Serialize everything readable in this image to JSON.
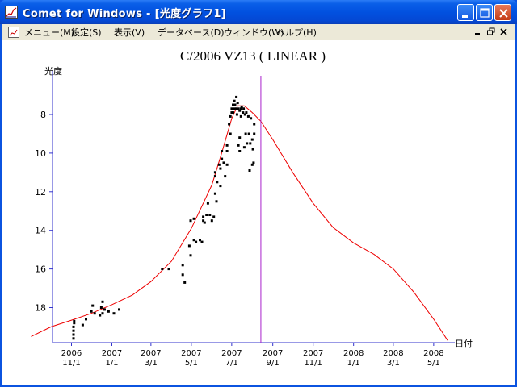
{
  "window": {
    "title": "Comet for Windows - [光度グラフ1]"
  },
  "menu": {
    "items": [
      "メニュー(M)",
      "設定(S)",
      "表示(V)",
      "データベース(D)",
      "ウィンドウ(W)",
      "ヘルプ(H)"
    ]
  },
  "colors": {
    "title_bar": "#0251e0",
    "curve": "#ee0000",
    "marker_line": "#aa22cc",
    "axis": "#3333cc",
    "points": "#000000"
  },
  "chart_data": {
    "type": "scatter",
    "title": "C/2006 VZ13 ( LINEAR )",
    "ylabel": "光度",
    "xlabel": "日付",
    "y_inverted": true,
    "ylim": [
      6.5,
      19.8
    ],
    "y_ticks": [
      8,
      10,
      12,
      14,
      16,
      18
    ],
    "x_ticks": [
      {
        "year": "2006",
        "date": "11/1"
      },
      {
        "year": "2007",
        "date": "1/1"
      },
      {
        "year": "2007",
        "date": "3/1"
      },
      {
        "year": "2007",
        "date": "5/1"
      },
      {
        "year": "2007",
        "date": "7/1"
      },
      {
        "year": "2007",
        "date": "9/1"
      },
      {
        "year": "2007",
        "date": "11/1"
      },
      {
        "year": "2008",
        "date": "1/1"
      },
      {
        "year": "2008",
        "date": "3/1"
      },
      {
        "year": "2008",
        "date": "5/1"
      }
    ],
    "marker_date": "2007-08-14",
    "observations": [
      [
        "2006-11-04",
        19.6
      ],
      [
        "2006-11-04",
        19.4
      ],
      [
        "2006-11-04",
        19.2
      ],
      [
        "2006-11-04",
        19.0
      ],
      [
        "2006-11-05",
        18.8
      ],
      [
        "2006-11-05",
        18.7
      ],
      [
        "2006-11-18",
        18.9
      ],
      [
        "2006-11-23",
        18.6
      ],
      [
        "2006-12-01",
        18.2
      ],
      [
        "2006-12-03",
        17.9
      ],
      [
        "2006-12-06",
        18.3
      ],
      [
        "2006-12-14",
        18.4
      ],
      [
        "2006-12-16",
        18.0
      ],
      [
        "2006-12-18",
        17.7
      ],
      [
        "2006-12-18",
        18.3
      ],
      [
        "2006-12-21",
        18.1
      ],
      [
        "2006-12-27",
        18.2
      ],
      [
        "2007-01-04",
        18.3
      ],
      [
        "2007-01-12",
        18.1
      ],
      [
        "2007-03-18",
        16.0
      ],
      [
        "2007-03-28",
        16.0
      ],
      [
        "2007-04-18",
        15.8
      ],
      [
        "2007-04-18",
        16.3
      ],
      [
        "2007-04-21",
        16.7
      ],
      [
        "2007-04-28",
        14.8
      ],
      [
        "2007-04-30",
        15.3
      ],
      [
        "2007-04-30",
        13.5
      ],
      [
        "2007-05-05",
        13.4
      ],
      [
        "2007-05-05",
        14.5
      ],
      [
        "2007-05-08",
        14.6
      ],
      [
        "2007-05-14",
        14.5
      ],
      [
        "2007-05-17",
        14.6
      ],
      [
        "2007-05-19",
        13.3
      ],
      [
        "2007-05-19",
        13.5
      ],
      [
        "2007-05-21",
        13.6
      ],
      [
        "2007-05-24",
        13.2
      ],
      [
        "2007-05-26",
        12.6
      ],
      [
        "2007-05-29",
        13.2
      ],
      [
        "2007-06-01",
        13.5
      ],
      [
        "2007-06-04",
        13.3
      ],
      [
        "2007-06-06",
        12.1
      ],
      [
        "2007-06-06",
        11.2
      ],
      [
        "2007-06-06",
        11.0
      ],
      [
        "2007-06-08",
        12.5
      ],
      [
        "2007-06-09",
        11.5
      ],
      [
        "2007-06-12",
        10.6
      ],
      [
        "2007-06-14",
        10.8
      ],
      [
        "2007-06-14",
        11.7
      ],
      [
        "2007-06-16",
        10.3
      ],
      [
        "2007-06-16",
        9.9
      ],
      [
        "2007-06-19",
        10.5
      ],
      [
        "2007-06-21",
        11.2
      ],
      [
        "2007-06-24",
        9.9
      ],
      [
        "2007-06-24",
        10.6
      ],
      [
        "2007-06-24",
        9.6
      ],
      [
        "2007-06-27",
        8.5
      ],
      [
        "2007-06-29",
        9.0
      ],
      [
        "2007-06-29",
        8.1
      ],
      [
        "2007-07-01",
        7.7
      ],
      [
        "2007-07-01",
        7.9
      ],
      [
        "2007-07-03",
        7.5
      ],
      [
        "2007-07-03",
        7.9
      ],
      [
        "2007-07-05",
        7.3
      ],
      [
        "2007-07-05",
        7.7
      ],
      [
        "2007-07-06",
        7.5
      ],
      [
        "2007-07-08",
        7.1
      ],
      [
        "2007-07-08",
        7.7
      ],
      [
        "2007-07-09",
        8.0
      ],
      [
        "2007-07-10",
        7.4
      ],
      [
        "2007-07-11",
        7.7
      ],
      [
        "2007-07-11",
        9.6
      ],
      [
        "2007-07-13",
        7.8
      ],
      [
        "2007-07-13",
        9.2
      ],
      [
        "2007-07-13",
        9.9
      ],
      [
        "2007-07-15",
        7.7
      ],
      [
        "2007-07-15",
        8.1
      ],
      [
        "2007-07-16",
        7.6
      ],
      [
        "2007-07-18",
        7.9
      ],
      [
        "2007-07-19",
        7.7
      ],
      [
        "2007-07-20",
        9.7
      ],
      [
        "2007-07-21",
        8.0
      ],
      [
        "2007-07-22",
        9.0
      ],
      [
        "2007-07-23",
        7.9
      ],
      [
        "2007-07-24",
        9.5
      ],
      [
        "2007-07-26",
        8.1
      ],
      [
        "2007-07-27",
        9.0
      ],
      [
        "2007-07-28",
        10.9
      ],
      [
        "2007-07-29",
        9.5
      ],
      [
        "2007-07-30",
        8.2
      ],
      [
        "2007-08-01",
        9.3
      ],
      [
        "2007-08-01",
        10.6
      ],
      [
        "2007-08-02",
        9.8
      ],
      [
        "2007-08-03",
        10.5
      ],
      [
        "2007-08-04",
        8.5
      ],
      [
        "2007-08-04",
        9.0
      ]
    ],
    "predicted_curve": [
      [
        "2006-09-01",
        19.5
      ],
      [
        "2006-10-01",
        19.0
      ],
      [
        "2006-11-01",
        18.65
      ],
      [
        "2006-12-01",
        18.3
      ],
      [
        "2007-01-01",
        17.85
      ],
      [
        "2007-02-01",
        17.35
      ],
      [
        "2007-03-01",
        16.65
      ],
      [
        "2007-04-01",
        15.6
      ],
      [
        "2007-05-01",
        13.9
      ],
      [
        "2007-06-01",
        11.65
      ],
      [
        "2007-06-15",
        10.1
      ],
      [
        "2007-07-01",
        8.2
      ],
      [
        "2007-07-10",
        7.55
      ],
      [
        "2007-07-20",
        7.55
      ],
      [
        "2007-08-01",
        7.9
      ],
      [
        "2007-08-14",
        8.35
      ],
      [
        "2007-09-01",
        9.3
      ],
      [
        "2007-10-01",
        11.0
      ],
      [
        "2007-11-01",
        12.6
      ],
      [
        "2007-12-01",
        13.85
      ],
      [
        "2008-01-01",
        14.65
      ],
      [
        "2008-02-01",
        15.25
      ],
      [
        "2008-03-01",
        16.0
      ],
      [
        "2008-04-01",
        17.2
      ],
      [
        "2008-05-01",
        18.6
      ],
      [
        "2008-05-22",
        19.7
      ]
    ]
  }
}
